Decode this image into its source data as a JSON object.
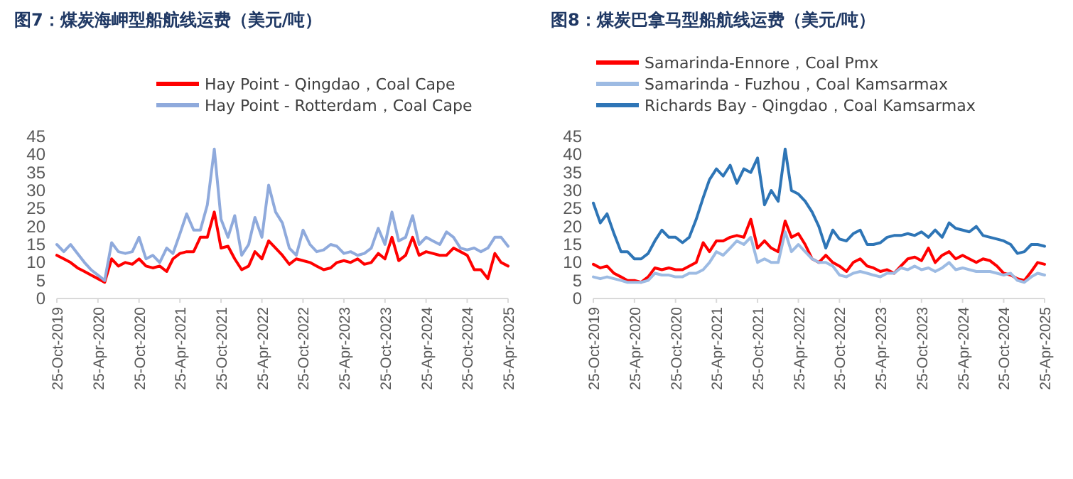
{
  "chart_data": [
    {
      "type": "line",
      "title": "图7：煤炭海岬型船航线运费（美元/吨）",
      "legend": "top",
      "x": [
        "2019-10-25",
        "2019-11-25",
        "2019-12-25",
        "2020-01-25",
        "2020-02-25",
        "2020-03-25",
        "2020-04-25",
        "2020-05-25",
        "2020-06-25",
        "2020-07-25",
        "2020-08-25",
        "2020-09-25",
        "2020-10-25",
        "2020-11-25",
        "2020-12-25",
        "2021-01-25",
        "2021-02-25",
        "2021-03-25",
        "2021-04-25",
        "2021-05-25",
        "2021-06-25",
        "2021-07-25",
        "2021-08-25",
        "2021-09-25",
        "2021-10-25",
        "2021-11-25",
        "2021-12-25",
        "2022-01-25",
        "2022-02-25",
        "2022-03-25",
        "2022-04-25",
        "2022-05-25",
        "2022-06-25",
        "2022-07-25",
        "2022-08-25",
        "2022-09-25",
        "2022-10-25",
        "2022-11-25",
        "2022-12-25",
        "2023-01-25",
        "2023-02-25",
        "2023-03-25",
        "2023-04-25",
        "2023-05-25",
        "2023-06-25",
        "2023-07-25",
        "2023-08-25",
        "2023-09-25",
        "2023-10-25",
        "2023-11-25",
        "2023-12-25",
        "2024-01-25",
        "2024-02-25",
        "2024-03-25",
        "2024-04-25",
        "2024-05-25",
        "2024-06-25",
        "2024-07-25",
        "2024-08-25",
        "2024-09-25",
        "2024-10-25",
        "2024-11-25",
        "2024-12-25",
        "2025-01-25",
        "2025-02-25",
        "2025-03-25",
        "2025-04-25"
      ],
      "series": [
        {
          "name": "Hay Point - Qingdao，Coal Cape",
          "color": "#ff0000",
          "values": [
            12,
            11,
            10,
            8.5,
            7.5,
            6.5,
            5.5,
            4.5,
            11,
            9,
            10,
            9.5,
            11,
            9,
            8.5,
            9,
            7.5,
            11,
            12.5,
            13,
            13,
            17,
            17,
            24,
            14,
            14.5,
            11,
            8,
            9,
            13,
            11,
            16,
            14,
            12,
            9.5,
            11,
            10.5,
            10,
            9,
            8,
            8.5,
            10,
            10.5,
            10,
            11,
            9.5,
            10,
            12.5,
            11,
            17,
            10.5,
            12,
            17,
            12,
            13,
            12.5,
            12,
            12,
            14,
            13,
            12,
            8,
            8,
            5.5,
            12.5,
            10,
            9
          ]
        },
        {
          "name": "Hay Point - Rotterdam，Coal Cape",
          "color": "#8faadc",
          "values": [
            15,
            13,
            15,
            12.5,
            10,
            8,
            6.5,
            5,
            15.5,
            13,
            12.5,
            13,
            17,
            11,
            12,
            10,
            14,
            12.5,
            18,
            23.5,
            19,
            19,
            26,
            41.5,
            22,
            17,
            23,
            12,
            15,
            22.5,
            17,
            31.5,
            24,
            21,
            14,
            12,
            19,
            15,
            13,
            13.5,
            15,
            14.5,
            12.5,
            13,
            12,
            12.5,
            14,
            19.5,
            15,
            24,
            16,
            17,
            23,
            15,
            17,
            16,
            15,
            18.5,
            17,
            14,
            13.5,
            14,
            13,
            14,
            17,
            17,
            14.5
          ]
        }
      ],
      "xlim": [
        "2019-10-25",
        "2025-04-25"
      ],
      "xticks": [
        {
          "value": "2019-10-25",
          "label": "25-Oct-2019"
        },
        {
          "value": "2020-04-25",
          "label": "25-Apr-2020"
        },
        {
          "value": "2020-10-25",
          "label": "25-Oct-2020"
        },
        {
          "value": "2021-04-25",
          "label": "25-Apr-2021"
        },
        {
          "value": "2021-10-25",
          "label": "25-Oct-2021"
        },
        {
          "value": "2022-04-25",
          "label": "25-Apr-2022"
        },
        {
          "value": "2022-10-25",
          "label": "25-Oct-2022"
        },
        {
          "value": "2023-04-25",
          "label": "25-Apr-2023"
        },
        {
          "value": "2023-10-25",
          "label": "25-Oct-2023"
        },
        {
          "value": "2024-04-25",
          "label": "25-Apr-2024"
        },
        {
          "value": "2024-10-25",
          "label": "25-Oct-2024"
        },
        {
          "value": "2025-04-25",
          "label": "25-Apr-2025"
        }
      ],
      "ylim": [
        0,
        45
      ],
      "yticks": [
        0,
        5,
        10,
        15,
        20,
        25,
        30,
        35,
        40,
        45
      ]
    },
    {
      "type": "line",
      "title": "图8：煤炭巴拿马型船航线运费（美元/吨）",
      "legend": "top",
      "x": [
        "2019-10-25",
        "2019-11-25",
        "2019-12-25",
        "2020-01-25",
        "2020-02-25",
        "2020-03-25",
        "2020-04-25",
        "2020-05-25",
        "2020-06-25",
        "2020-07-25",
        "2020-08-25",
        "2020-09-25",
        "2020-10-25",
        "2020-11-25",
        "2020-12-25",
        "2021-01-25",
        "2021-02-25",
        "2021-03-25",
        "2021-04-25",
        "2021-05-25",
        "2021-06-25",
        "2021-07-25",
        "2021-08-25",
        "2021-09-25",
        "2021-10-25",
        "2021-11-25",
        "2021-12-25",
        "2022-01-25",
        "2022-02-25",
        "2022-03-25",
        "2022-04-25",
        "2022-05-25",
        "2022-06-25",
        "2022-07-25",
        "2022-08-25",
        "2022-09-25",
        "2022-10-25",
        "2022-11-25",
        "2022-12-25",
        "2023-01-25",
        "2023-02-25",
        "2023-03-25",
        "2023-04-25",
        "2023-05-25",
        "2023-06-25",
        "2023-07-25",
        "2023-08-25",
        "2023-09-25",
        "2023-10-25",
        "2023-11-25",
        "2023-12-25",
        "2024-01-25",
        "2024-02-25",
        "2024-03-25",
        "2024-04-25",
        "2024-05-25",
        "2024-06-25",
        "2024-07-25",
        "2024-08-25",
        "2024-09-25",
        "2024-10-25",
        "2024-11-25",
        "2024-12-25",
        "2025-01-25",
        "2025-02-25",
        "2025-03-25",
        "2025-04-25"
      ],
      "series": [
        {
          "name": "Samarinda-Ennore，Coal Pmx",
          "color": "#ff0000",
          "values": [
            9.5,
            8.5,
            9,
            7,
            6,
            5,
            5,
            4.5,
            6,
            8.5,
            8,
            8.5,
            8,
            8,
            9,
            10,
            15.5,
            13,
            16,
            16,
            17,
            17.5,
            17,
            22,
            14,
            16,
            14,
            13,
            21.5,
            17,
            18,
            15,
            11,
            10,
            12,
            10,
            9,
            7.5,
            10,
            11,
            9,
            8.5,
            7.5,
            8,
            7,
            9,
            11,
            11.5,
            10.5,
            14,
            10,
            12,
            13,
            11,
            12,
            11,
            10,
            11,
            10.5,
            9,
            7,
            6.5,
            5.5,
            5,
            7.5,
            10,
            9.5
          ]
        },
        {
          "name": "Samarinda - Fuzhou，Coal Kamsarmax",
          "color": "#9dbbe3",
          "values": [
            6,
            5.5,
            6,
            5.5,
            5,
            4.5,
            4.5,
            4.5,
            5,
            7,
            6.5,
            6.5,
            6,
            6,
            7,
            7,
            8,
            10,
            13,
            12,
            14,
            16,
            15,
            17,
            10,
            11,
            10,
            10,
            18.5,
            13,
            15,
            13,
            11,
            10,
            10,
            9,
            6.5,
            6,
            7,
            7.5,
            7,
            6.5,
            6,
            7,
            7,
            8.5,
            8,
            9,
            8,
            8.5,
            7.5,
            8.5,
            10,
            8,
            8.5,
            8,
            7.5,
            7.5,
            7.5,
            7,
            6.5,
            7,
            5,
            4.5,
            6,
            7,
            6.5
          ]
        },
        {
          "name": "Richards Bay - Qingdao，Coal Kamsarmax",
          "color": "#2e75b6",
          "values": [
            26.5,
            21,
            23.5,
            18,
            13,
            13,
            11,
            11,
            12.5,
            16,
            19,
            17,
            17,
            15.5,
            17,
            22,
            28,
            33,
            36,
            34,
            37,
            32,
            36,
            35,
            39,
            26,
            30,
            27,
            41.5,
            30,
            29,
            27,
            24,
            20,
            14,
            19,
            16.5,
            16,
            18,
            19,
            15,
            15,
            15.5,
            17,
            17.5,
            17.5,
            18,
            17.5,
            18.5,
            17,
            19,
            17,
            21,
            19.5,
            19,
            18.5,
            20,
            17.5,
            17,
            16.5,
            16,
            15,
            12.5,
            13,
            15,
            15,
            14.5
          ]
        }
      ],
      "xlim": [
        "2019-10-25",
        "2025-04-25"
      ],
      "xticks": [
        {
          "value": "2019-10-25",
          "label": "25-Oct-2019"
        },
        {
          "value": "2020-04-25",
          "label": "25-Apr-2020"
        },
        {
          "value": "2020-10-25",
          "label": "25-Oct-2020"
        },
        {
          "value": "2021-04-25",
          "label": "25-Apr-2021"
        },
        {
          "value": "2021-10-25",
          "label": "25-Oct-2021"
        },
        {
          "value": "2022-04-25",
          "label": "25-Apr-2022"
        },
        {
          "value": "2022-10-25",
          "label": "25-Oct-2022"
        },
        {
          "value": "2023-04-25",
          "label": "25-Apr-2023"
        },
        {
          "value": "2023-10-25",
          "label": "25-Oct-2023"
        },
        {
          "value": "2024-04-25",
          "label": "25-Apr-2024"
        },
        {
          "value": "2024-10-25",
          "label": "25-Oct-2024"
        },
        {
          "value": "2025-04-25",
          "label": "25-Apr-2025"
        }
      ],
      "ylim": [
        0,
        45
      ],
      "yticks": [
        0,
        5,
        10,
        15,
        20,
        25,
        30,
        35,
        40,
        45
      ]
    }
  ]
}
